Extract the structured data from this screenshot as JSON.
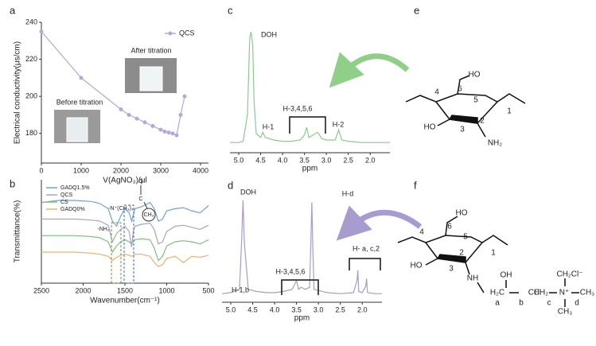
{
  "panel_labels": [
    "a",
    "b",
    "c",
    "d",
    "e",
    "f"
  ],
  "chart_data": [
    {
      "type": "line",
      "x": [
        0,
        1000,
        2000,
        2200,
        2400,
        2600,
        2800,
        3000,
        3100,
        3200,
        3300,
        3400,
        3500,
        3600
      ],
      "series": [
        {
          "name": "QCS",
          "color": "#b3a8d8",
          "values": [
            235,
            210,
            193,
            190,
            188,
            186,
            184,
            182,
            181,
            180.5,
            180,
            179,
            190,
            200
          ]
        }
      ],
      "markers": true,
      "legend": "upper right",
      "xlim": [
        0,
        4200
      ],
      "ylim": [
        164,
        240
      ],
      "xticks": [
        0,
        1000,
        2000,
        3000,
        4000
      ],
      "yticks": [
        180,
        200,
        220,
        240
      ],
      "x_label": "V(AgNO₃)/μl",
      "y_label": "Electrical conductivity(μs/cm)",
      "annotations": [
        "Before titration",
        "After titration"
      ]
    },
    {
      "type": "line",
      "x": [
        2500,
        2300,
        2100,
        1900,
        1800,
        1700,
        1650,
        1600,
        1550,
        1500,
        1450,
        1420,
        1400,
        1380,
        1300,
        1200,
        1150,
        1100,
        1050,
        1000,
        900,
        800,
        700,
        600,
        500
      ],
      "series": [
        {
          "name": "GADQ1.5%",
          "color": "#6fa3d8",
          "values": [
            78,
            80,
            80,
            79,
            77,
            72,
            60,
            55,
            65,
            72,
            68,
            60,
            66,
            72,
            74,
            78,
            72,
            60,
            62,
            70,
            72,
            73,
            70,
            68,
            75
          ]
        },
        {
          "name": "QCS",
          "color": "#a9a3c8",
          "values": [
            62,
            62,
            62,
            61,
            60,
            56,
            40,
            48,
            52,
            55,
            50,
            35,
            50,
            55,
            57,
            58,
            52,
            38,
            40,
            50,
            55,
            56,
            54,
            52,
            56
          ]
        },
        {
          "name": "CS",
          "color": "#7fbf7f",
          "values": [
            46,
            46,
            46,
            45,
            44,
            40,
            30,
            36,
            40,
            42,
            40,
            38,
            40,
            42,
            43,
            42,
            34,
            22,
            26,
            36,
            40,
            41,
            40,
            38,
            42
          ]
        },
        {
          "name": "GADQ0%",
          "color": "#f0b070",
          "values": [
            30,
            30,
            30,
            29,
            28,
            26,
            22,
            25,
            27,
            28,
            27,
            26,
            27,
            28,
            28,
            26,
            20,
            16,
            18,
            24,
            26,
            20,
            26,
            25,
            27
          ]
        }
      ],
      "legend": "upper left",
      "xlim": [
        2500,
        500
      ],
      "ylim": [
        0,
        100
      ],
      "xticks": [
        2500,
        2000,
        1500,
        1000,
        500
      ],
      "x_label": "Wavenumber(cm⁻¹)",
      "y_label": "Transmittance(%)",
      "annotations": [
        "-NH₂",
        "-N⁺(CH₃)₃",
        "C",
        "O",
        "CH₃"
      ]
    },
    {
      "type": "line",
      "x": [
        5.2,
        5.0,
        4.9,
        4.8,
        4.75,
        4.72,
        4.68,
        4.65,
        4.6,
        4.5,
        4.45,
        4.4,
        4.2,
        4.0,
        3.8,
        3.6,
        3.5,
        3.45,
        3.4,
        3.3,
        3.2,
        3.1,
        3.0,
        2.8,
        2.72,
        2.65,
        2.5,
        2.2,
        2.0,
        1.8,
        1.55
      ],
      "series": [
        {
          "color": "#8ec98e",
          "values": [
            8,
            8,
            9,
            30,
            90,
            95,
            85,
            40,
            15,
            12,
            16,
            12,
            10,
            9,
            9,
            10,
            14,
            20,
            12,
            14,
            16,
            11,
            10,
            10,
            18,
            10,
            9,
            8,
            8,
            8,
            8
          ]
        }
      ],
      "xlim": [
        5.2,
        1.55
      ],
      "ylim": [
        0,
        100
      ],
      "xticks": [
        {
          "value": 5,
          "label": "5.0"
        },
        4.5,
        {
          "value": 4,
          "label": "4.0"
        },
        3.5,
        {
          "value": 3,
          "label": "3.0"
        },
        2.5,
        {
          "value": 2,
          "label": "2.0"
        }
      ],
      "x_label": "ppm",
      "annotations": [
        "DOH",
        "H-1",
        "H-3,4,5,6",
        "H-2"
      ]
    },
    {
      "type": "line",
      "x": [
        5.2,
        5.0,
        4.8,
        4.75,
        4.72,
        4.69,
        4.6,
        4.4,
        4.2,
        4.0,
        3.8,
        3.6,
        3.5,
        3.45,
        3.4,
        3.3,
        3.2,
        3.17,
        3.15,
        3.13,
        3.1,
        2.8,
        2.5,
        2.2,
        2.12,
        2.1,
        2.08,
        2.0,
        1.92,
        1.9,
        1.88,
        1.7,
        1.55
      ],
      "series": [
        {
          "color": "#a89cc8",
          "values": [
            8,
            9,
            12,
            60,
            95,
            55,
            12,
            10,
            9,
            9,
            10,
            12,
            20,
            12,
            14,
            12,
            14,
            60,
            93,
            55,
            12,
            9,
            8,
            9,
            20,
            30,
            10,
            9,
            15,
            22,
            9,
            8,
            8
          ]
        }
      ],
      "xlim": [
        5.2,
        1.55
      ],
      "ylim": [
        0,
        100
      ],
      "xticks": [
        {
          "value": 5,
          "label": "5.0"
        },
        4.5,
        {
          "value": 4,
          "label": "4.0"
        },
        3.5,
        {
          "value": 3,
          "label": "3.0"
        },
        2.5,
        {
          "value": 2,
          "label": "2.0"
        }
      ],
      "x_label": "ppm",
      "annotations": [
        "DOH",
        "H-d",
        "H-1,b",
        "H-3,4,5,6",
        "H- a, c,2"
      ]
    }
  ],
  "structures": {
    "e": {
      "labels": [
        "HO",
        "6",
        "5",
        "4",
        "3",
        "2",
        "1",
        "HO",
        "NH₂"
      ]
    },
    "f": {
      "labels": [
        "HO",
        "6",
        "5",
        "4",
        "3",
        "2",
        "1",
        "HO",
        "NH",
        "OH",
        "H₂C",
        "CH",
        "CH₂",
        "N⁺",
        "CH₂Cl⁻",
        "CH₃",
        "CH₃",
        "a",
        "b",
        "c",
        "d"
      ]
    }
  }
}
